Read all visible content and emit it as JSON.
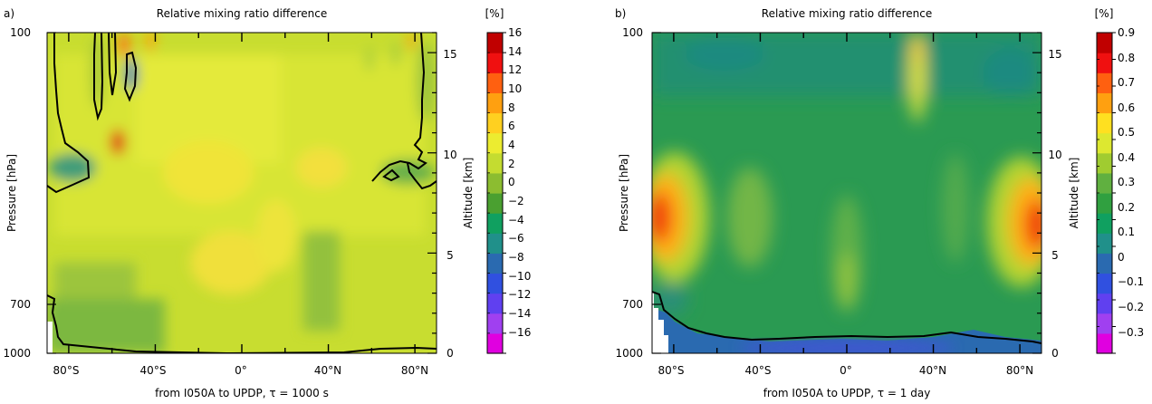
{
  "colors": {
    "colorbar_a": [
      "#e000e0",
      "#a040f0",
      "#6040f0",
      "#3050e0",
      "#2a6ab0",
      "#20908a",
      "#10a060",
      "#4aa030",
      "#8cbd30",
      "#c4dc30",
      "#ecec30",
      "#ffd020",
      "#ffa010",
      "#ff6010",
      "#f01010",
      "#c00000"
    ],
    "colorbar_b": [
      "#e000e0",
      "#a040f0",
      "#6040f0",
      "#3050e0",
      "#2a6ab0",
      "#20908a",
      "#10a060",
      "#30a040",
      "#60b040",
      "#a0cc30",
      "#dde830",
      "#ffe020",
      "#ffa010",
      "#ff6010",
      "#f01010",
      "#c00000"
    ]
  },
  "chart_data": [
    {
      "panel": "a)",
      "type": "heatmap",
      "title": "Relative mixing ratio difference",
      "xlabel": "from I050A to UPDP, τ = 1000 s",
      "ylabel": "Pressure [hPa]",
      "ylabel_right": "Altitude [km]",
      "x_ticks": [
        "80°S",
        "40°S",
        "0°",
        "40°N",
        "80°N"
      ],
      "x_tick_values": [
        -80,
        -40,
        0,
        40,
        80
      ],
      "xlim": [
        -90,
        90
      ],
      "y_ticks": [
        "100",
        "700",
        "1000"
      ],
      "y_tick_values": [
        100,
        700,
        1000
      ],
      "ylim": [
        1000,
        100
      ],
      "altitude_ticks": [
        "0",
        "5",
        "10",
        "15"
      ],
      "altitude_tick_values": [
        0,
        5,
        10,
        15
      ],
      "colorbar_unit": "[%]",
      "colorbar_levels": [
        -16,
        -14,
        -12,
        -10,
        -8,
        -6,
        -4,
        -2,
        0,
        2,
        4,
        6,
        8,
        10,
        12,
        14,
        16
      ],
      "colorbar_labels": [
        "16",
        "14",
        "12",
        "10",
        "8",
        "6",
        "4",
        "2",
        "0",
        "−2",
        "−4",
        "−6",
        "−8",
        "−10",
        "−12",
        "−14",
        "−16"
      ]
    },
    {
      "panel": "b)",
      "type": "heatmap",
      "title": "Relative mixing ratio difference",
      "xlabel": "from I050A to UPDP, τ = 1 day",
      "ylabel": "Pressure [hPa]",
      "ylabel_right": "Altitude [km]",
      "x_ticks": [
        "80°S",
        "40°S",
        "0°",
        "40°N",
        "80°N"
      ],
      "x_tick_values": [
        -80,
        -40,
        0,
        40,
        80
      ],
      "xlim": [
        -90,
        90
      ],
      "y_ticks": [
        "100",
        "700",
        "1000"
      ],
      "y_tick_values": [
        100,
        700,
        1000
      ],
      "ylim": [
        1000,
        100
      ],
      "altitude_ticks": [
        "0",
        "5",
        "10",
        "15"
      ],
      "altitude_tick_values": [
        0,
        5,
        10,
        15
      ],
      "colorbar_unit": "[%]",
      "colorbar_levels": [
        -0.3,
        -0.2,
        -0.1,
        0,
        0.1,
        0.2,
        0.3,
        0.4,
        0.5,
        0.6,
        0.7,
        0.8,
        0.9
      ],
      "colorbar_labels": [
        "0.9",
        "0.8",
        "0.7",
        "0.6",
        "0.5",
        "0.4",
        "0.3",
        "0.2",
        "0.1",
        "0",
        "−0.1",
        "−0.2",
        "−0.3"
      ]
    }
  ]
}
